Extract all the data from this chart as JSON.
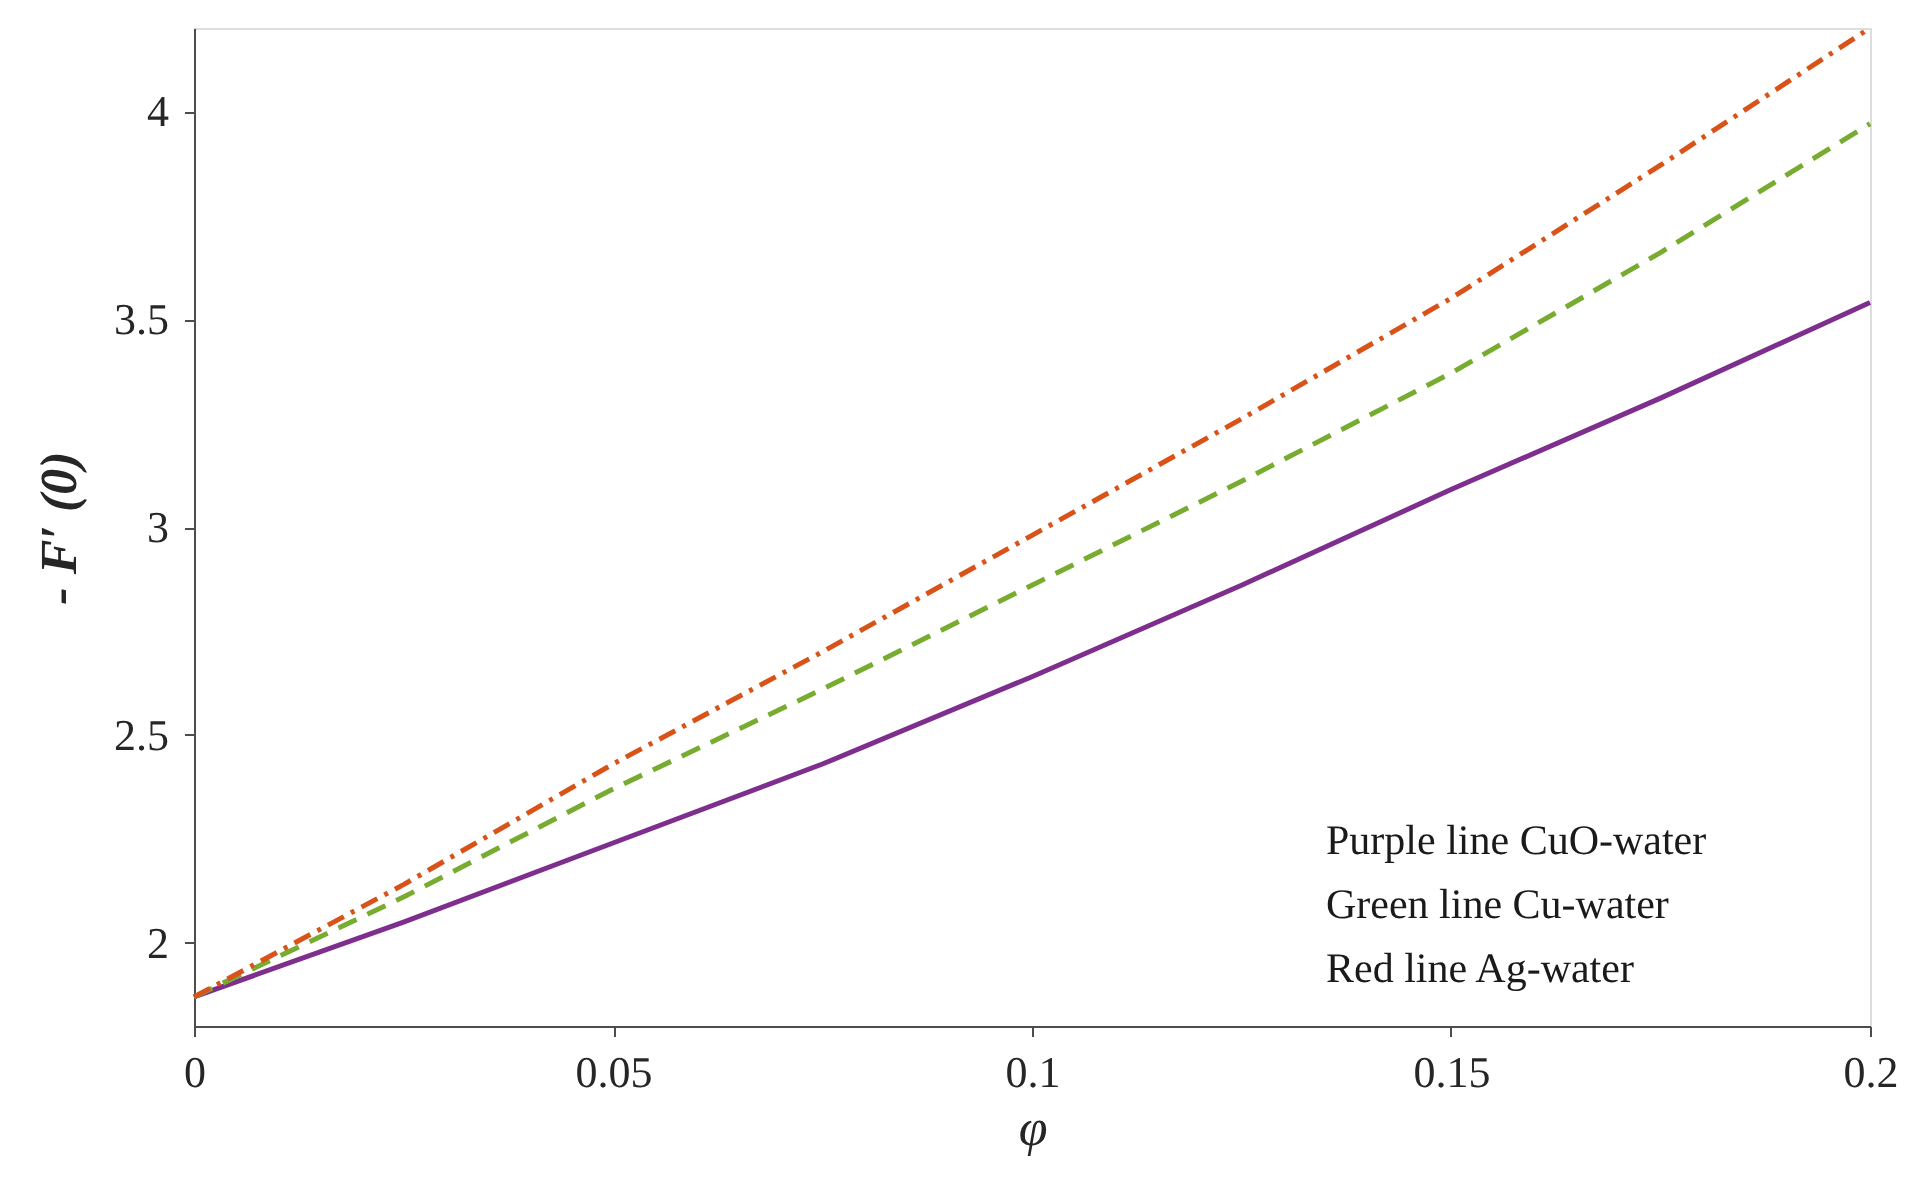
{
  "chart_data": {
    "type": "line",
    "xlabel": "φ",
    "ylabel": "- F′ (0)",
    "x": [
      0,
      0.025,
      0.05,
      0.075,
      0.1,
      0.125,
      0.15,
      0.175,
      0.2
    ],
    "series": [
      {
        "color": "#7e2f8e",
        "line_style": "solid",
        "values": [
          1.87,
          2.05,
          2.24,
          2.43,
          2.64,
          2.86,
          3.09,
          3.31,
          3.54
        ]
      },
      {
        "color": "#77ac30",
        "line_style": "dashed",
        "values": [
          1.87,
          2.11,
          2.37,
          2.61,
          2.86,
          3.11,
          3.37,
          3.66,
          3.97
        ]
      },
      {
        "color": "#d95319",
        "line_style": "dashdot",
        "values": [
          1.87,
          2.14,
          2.43,
          2.7,
          2.98,
          3.26,
          3.55,
          3.87,
          4.2
        ]
      }
    ],
    "xlim": [
      0,
      0.2
    ],
    "xticks": [
      0,
      0.05,
      0.1,
      0.15,
      0.2
    ],
    "ylim": [
      1.8,
      4.2
    ],
    "yticks": [
      2,
      2.5,
      3,
      3.5,
      4
    ],
    "grid": false,
    "legend": false,
    "marker": "none",
    "annotations": [
      "Purple line   CuO-water",
      "Green line    Cu-water",
      "Red line        Ag-water"
    ]
  }
}
